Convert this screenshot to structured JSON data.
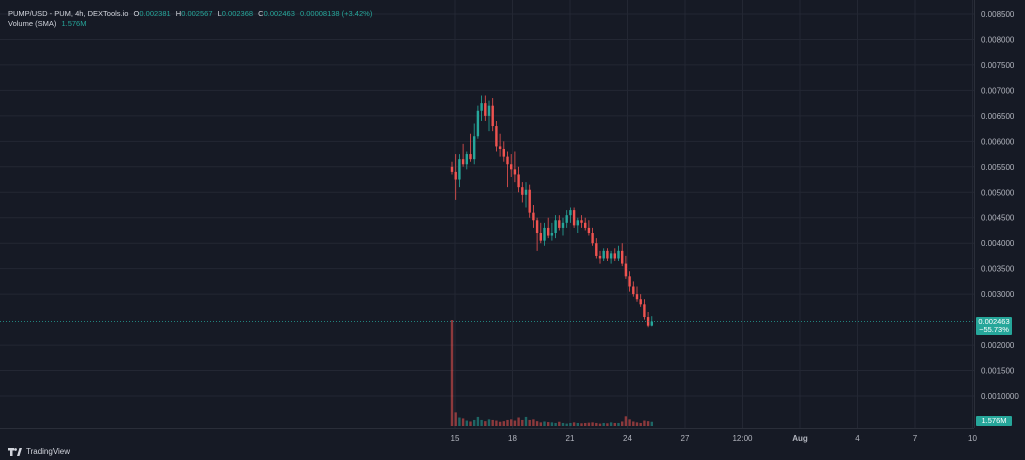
{
  "legend": {
    "symbol": "PUMP/USD - PUM, 4h, DEXTools.io",
    "o_label": "O",
    "o_value": "0.002381",
    "h_label": "H",
    "h_value": "0.002567",
    "l_label": "L",
    "l_value": "0.002368",
    "c_label": "C",
    "c_value": "0.002463",
    "change": "0.00008138 (+3.42%)",
    "volume_label": "Volume (SMA)",
    "volume_value": "1.576M"
  },
  "price_axis": {
    "ticks": [
      "0.008500",
      "0.008000",
      "0.007500",
      "0.007000",
      "0.006500",
      "0.006000",
      "0.005500",
      "0.005000",
      "0.004500",
      "0.004000",
      "0.003500",
      "0.003000",
      "0.002000",
      "0.001500",
      "0.0010000"
    ],
    "current_price": "0.002463",
    "current_change": "−55.73%",
    "volume_badge": "1.576M"
  },
  "time_axis": {
    "ticks": [
      "15",
      "18",
      "21",
      "24",
      "27",
      "12:00",
      "Aug",
      "4",
      "7",
      "10"
    ]
  },
  "footer": {
    "brand": "TradingView"
  },
  "colors": {
    "up": "#26a69a",
    "down": "#ef5350",
    "background": "#161a25",
    "grid": "#232733"
  },
  "chart_data": {
    "type": "candlestick",
    "title": "PUMP/USD - PUM, 4h, DEXTools.io",
    "ylim": [
      0.0008,
      0.0086
    ],
    "candles": [
      {
        "o": 0.0055,
        "h": 0.0056,
        "l": 0.00535,
        "c": 0.0054
      },
      {
        "o": 0.0054,
        "h": 0.00575,
        "l": 0.00485,
        "c": 0.00525
      },
      {
        "o": 0.00525,
        "h": 0.00575,
        "l": 0.0051,
        "c": 0.00565
      },
      {
        "o": 0.00565,
        "h": 0.00595,
        "l": 0.0055,
        "c": 0.00555
      },
      {
        "o": 0.00555,
        "h": 0.0058,
        "l": 0.00545,
        "c": 0.00575
      },
      {
        "o": 0.00575,
        "h": 0.00615,
        "l": 0.0056,
        "c": 0.00565
      },
      {
        "o": 0.00565,
        "h": 0.00635,
        "l": 0.00555,
        "c": 0.0061
      },
      {
        "o": 0.0061,
        "h": 0.0067,
        "l": 0.00605,
        "c": 0.0066
      },
      {
        "o": 0.0066,
        "h": 0.0069,
        "l": 0.0064,
        "c": 0.00675
      },
      {
        "o": 0.00675,
        "h": 0.0069,
        "l": 0.0064,
        "c": 0.0065
      },
      {
        "o": 0.0065,
        "h": 0.0068,
        "l": 0.0062,
        "c": 0.0067
      },
      {
        "o": 0.0067,
        "h": 0.00685,
        "l": 0.0062,
        "c": 0.0063
      },
      {
        "o": 0.0063,
        "h": 0.0064,
        "l": 0.0058,
        "c": 0.0059
      },
      {
        "o": 0.0059,
        "h": 0.00615,
        "l": 0.0057,
        "c": 0.00585
      },
      {
        "o": 0.00585,
        "h": 0.006,
        "l": 0.0056,
        "c": 0.0057
      },
      {
        "o": 0.0057,
        "h": 0.0058,
        "l": 0.0051,
        "c": 0.00555
      },
      {
        "o": 0.00555,
        "h": 0.00575,
        "l": 0.0053,
        "c": 0.00545
      },
      {
        "o": 0.00545,
        "h": 0.0058,
        "l": 0.0052,
        "c": 0.00535
      },
      {
        "o": 0.00535,
        "h": 0.0055,
        "l": 0.005,
        "c": 0.0051
      },
      {
        "o": 0.0051,
        "h": 0.0052,
        "l": 0.0048,
        "c": 0.00495
      },
      {
        "o": 0.00495,
        "h": 0.0052,
        "l": 0.0047,
        "c": 0.00505
      },
      {
        "o": 0.00505,
        "h": 0.00515,
        "l": 0.0045,
        "c": 0.0046
      },
      {
        "o": 0.0046,
        "h": 0.00475,
        "l": 0.0043,
        "c": 0.00445
      },
      {
        "o": 0.00445,
        "h": 0.0045,
        "l": 0.00385,
        "c": 0.0042
      },
      {
        "o": 0.0042,
        "h": 0.0044,
        "l": 0.004,
        "c": 0.00405
      },
      {
        "o": 0.00405,
        "h": 0.0044,
        "l": 0.00395,
        "c": 0.0043
      },
      {
        "o": 0.0043,
        "h": 0.0045,
        "l": 0.0041,
        "c": 0.00415
      },
      {
        "o": 0.00415,
        "h": 0.0044,
        "l": 0.00405,
        "c": 0.0042
      },
      {
        "o": 0.0042,
        "h": 0.00455,
        "l": 0.0041,
        "c": 0.00445
      },
      {
        "o": 0.00445,
        "h": 0.00455,
        "l": 0.00425,
        "c": 0.0043
      },
      {
        "o": 0.0043,
        "h": 0.0045,
        "l": 0.00415,
        "c": 0.0044
      },
      {
        "o": 0.0044,
        "h": 0.00465,
        "l": 0.0043,
        "c": 0.00455
      },
      {
        "o": 0.00455,
        "h": 0.0047,
        "l": 0.0044,
        "c": 0.00465
      },
      {
        "o": 0.00465,
        "h": 0.0047,
        "l": 0.0043,
        "c": 0.00435
      },
      {
        "o": 0.00435,
        "h": 0.0045,
        "l": 0.0042,
        "c": 0.00445
      },
      {
        "o": 0.00445,
        "h": 0.00455,
        "l": 0.0043,
        "c": 0.0044
      },
      {
        "o": 0.0044,
        "h": 0.0045,
        "l": 0.00425,
        "c": 0.0043
      },
      {
        "o": 0.0043,
        "h": 0.00445,
        "l": 0.00415,
        "c": 0.0042
      },
      {
        "o": 0.0042,
        "h": 0.0043,
        "l": 0.00395,
        "c": 0.004
      },
      {
        "o": 0.004,
        "h": 0.0041,
        "l": 0.0037,
        "c": 0.00375
      },
      {
        "o": 0.00375,
        "h": 0.00385,
        "l": 0.0036,
        "c": 0.0037
      },
      {
        "o": 0.0037,
        "h": 0.0039,
        "l": 0.00365,
        "c": 0.00385
      },
      {
        "o": 0.00385,
        "h": 0.0039,
        "l": 0.00365,
        "c": 0.0037
      },
      {
        "o": 0.0037,
        "h": 0.00385,
        "l": 0.0036,
        "c": 0.0038
      },
      {
        "o": 0.0038,
        "h": 0.0039,
        "l": 0.00365,
        "c": 0.0037
      },
      {
        "o": 0.0037,
        "h": 0.00395,
        "l": 0.00365,
        "c": 0.00385
      },
      {
        "o": 0.00385,
        "h": 0.004,
        "l": 0.00355,
        "c": 0.0036
      },
      {
        "o": 0.0036,
        "h": 0.00375,
        "l": 0.0033,
        "c": 0.00335
      },
      {
        "o": 0.00335,
        "h": 0.00345,
        "l": 0.00305,
        "c": 0.00315
      },
      {
        "o": 0.00315,
        "h": 0.00325,
        "l": 0.00295,
        "c": 0.003
      },
      {
        "o": 0.003,
        "h": 0.00315,
        "l": 0.00285,
        "c": 0.0029
      },
      {
        "o": 0.0029,
        "h": 0.003,
        "l": 0.00275,
        "c": 0.0028
      },
      {
        "o": 0.0028,
        "h": 0.0029,
        "l": 0.0025,
        "c": 0.00255
      },
      {
        "o": 0.00255,
        "h": 0.00265,
        "l": 0.00235,
        "c": 0.00238
      },
      {
        "o": 0.002381,
        "h": 0.002567,
        "l": 0.002368,
        "c": 0.002463
      }
    ],
    "volumes": [
      3.5,
      0.45,
      0.28,
      0.25,
      0.18,
      0.15,
      0.2,
      0.3,
      0.2,
      0.16,
      0.22,
      0.2,
      0.18,
      0.14,
      0.16,
      0.2,
      0.22,
      0.18,
      0.28,
      0.2,
      0.3,
      0.2,
      0.22,
      0.16,
      0.12,
      0.15,
      0.13,
      0.12,
      0.1,
      0.14,
      0.1,
      0.08,
      0.1,
      0.12,
      0.1,
      0.09,
      0.1,
      0.11,
      0.12,
      0.1,
      0.08,
      0.1,
      0.09,
      0.12,
      0.1,
      0.1,
      0.15,
      0.32,
      0.22,
      0.15,
      0.12,
      0.1,
      0.18,
      0.16,
      0.14
    ]
  }
}
